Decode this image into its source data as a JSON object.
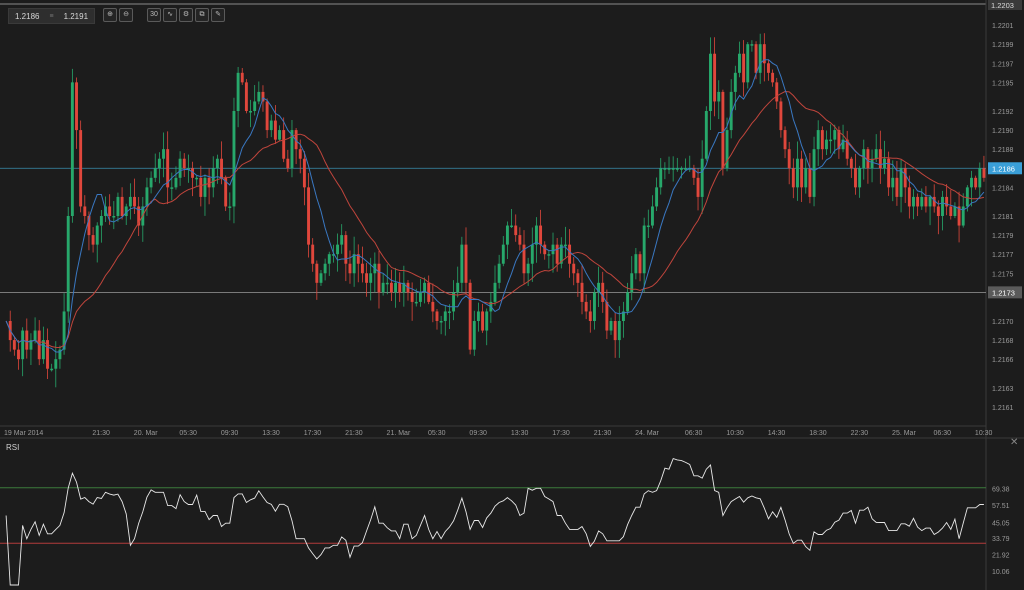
{
  "toolbar": {
    "bid": "1.2186",
    "ask": "1.2191",
    "separator": "≡",
    "tools": [
      {
        "name": "zoom-in-icon",
        "glyph": "⊕"
      },
      {
        "name": "zoom-out-icon",
        "glyph": "⊖"
      },
      {
        "name": "timeframe-30m-button",
        "glyph": "30"
      },
      {
        "name": "indicators-icon",
        "glyph": "∿"
      },
      {
        "name": "settings-icon",
        "glyph": "⚙"
      },
      {
        "name": "copy-icon",
        "glyph": "⧉"
      },
      {
        "name": "draw-icon",
        "glyph": "✎"
      }
    ]
  },
  "colors": {
    "background": "#1c1c1c",
    "up": "#27a86b",
    "down": "#e0473c",
    "ma_fast": "#3a78c2",
    "ma_slow": "#c0453c",
    "hline_blue": "#3a8fb0",
    "hline_grey": "#9a9a9a",
    "rsi_line": "#e8e8e8",
    "rsi_upper": "#3b7a3b",
    "rsi_lower": "#b23b3b",
    "current_tag": "#3a9fd8",
    "grid": "#2a2a2a"
  },
  "rsi_panel": {
    "label": "RSI",
    "close_glyph": "✕"
  },
  "chart_data": [
    {
      "type": "candlestick",
      "instrument_price_labels": {
        "current": "1.2186",
        "marker": "1.2173",
        "top": "1.2203"
      },
      "ylim": [
        1.2159,
        1.2203
      ],
      "y_ticks": [
        "1.2201",
        "1.2199",
        "1.2197",
        "1.2195",
        "1.2192",
        "1.2190",
        "1.2188",
        "1.2186",
        "1.2184",
        "1.2181",
        "1.2179",
        "1.2177",
        "1.2175",
        "1.2173",
        "1.2170",
        "1.2168",
        "1.2166",
        "1.2163",
        "1.2161"
      ],
      "y_tick_values": [
        1.2201,
        1.2199,
        1.2197,
        1.2195,
        1.2192,
        1.219,
        1.2188,
        1.2186,
        1.2184,
        1.2181,
        1.2179,
        1.2177,
        1.2175,
        1.2173,
        1.217,
        1.2168,
        1.2166,
        1.2163,
        1.2161
      ],
      "x_ticks": [
        "19 Mar 2014",
        "21:30",
        "20. Mar",
        "05:30",
        "09:30",
        "13:30",
        "17:30",
        "21:30",
        "21. Mar",
        "05:30",
        "09:30",
        "13:30",
        "17:30",
        "21:30",
        "24. Mar",
        "06:30",
        "10:30",
        "14:30",
        "18:30",
        "22:30",
        "25. Mar",
        "06:30",
        "10:30"
      ],
      "x_tick_index": [
        0,
        23,
        33,
        44,
        54,
        64,
        74,
        84,
        94,
        104,
        114,
        124,
        134,
        144,
        154,
        166,
        176,
        186,
        196,
        206,
        216,
        226,
        236
      ],
      "horizontal_lines": [
        {
          "value": 1.2186,
          "label": "1.2186"
        },
        {
          "value": 1.2173,
          "label": "1.2173"
        }
      ],
      "closes": [
        1.217,
        1.2168,
        1.2167,
        1.2166,
        1.2169,
        1.2167,
        1.2168,
        1.2169,
        1.2166,
        1.2168,
        1.2165,
        1.2165,
        1.2166,
        1.2167,
        1.2171,
        1.2181,
        1.2195,
        1.219,
        1.2182,
        1.2181,
        1.2179,
        1.2178,
        1.218,
        1.2181,
        1.2182,
        1.2181,
        1.2181,
        1.2183,
        1.2181,
        1.2182,
        1.2183,
        1.2182,
        1.218,
        1.2182,
        1.2184,
        1.2185,
        1.2186,
        1.2187,
        1.2188,
        1.2184,
        1.2184,
        1.2185,
        1.2187,
        1.2186,
        1.2186,
        1.2185,
        1.2185,
        1.2183,
        1.2185,
        1.2184,
        1.2186,
        1.2187,
        1.2185,
        1.2182,
        1.2182,
        1.2192,
        1.2196,
        1.2195,
        1.2192,
        1.2192,
        1.2193,
        1.2194,
        1.2193,
        1.219,
        1.2191,
        1.2189,
        1.219,
        1.2187,
        1.2186,
        1.219,
        1.2188,
        1.2187,
        1.2184,
        1.2178,
        1.2176,
        1.2174,
        1.2175,
        1.2176,
        1.2177,
        1.2177,
        1.2178,
        1.2179,
        1.2176,
        1.2175,
        1.2177,
        1.2176,
        1.2175,
        1.2174,
        1.2175,
        1.2176,
        1.2173,
        1.2174,
        1.2174,
        1.2173,
        1.2174,
        1.2173,
        1.2174,
        1.2173,
        1.2172,
        1.2172,
        1.2173,
        1.2174,
        1.2172,
        1.2171,
        1.217,
        1.217,
        1.2171,
        1.2171,
        1.2173,
        1.2174,
        1.2178,
        1.2174,
        1.2167,
        1.217,
        1.2171,
        1.2169,
        1.2171,
        1.2172,
        1.2174,
        1.2176,
        1.2178,
        1.218,
        1.218,
        1.2179,
        1.2178,
        1.2175,
        1.2176,
        1.2178,
        1.218,
        1.2178,
        1.2177,
        1.2177,
        1.2178,
        1.2176,
        1.2178,
        1.2178,
        1.2176,
        1.2175,
        1.2174,
        1.2172,
        1.2171,
        1.217,
        1.2173,
        1.2174,
        1.2172,
        1.2169,
        1.217,
        1.2168,
        1.217,
        1.2171,
        1.2173,
        1.2175,
        1.2177,
        1.2175,
        1.218,
        1.218,
        1.2182,
        1.2184,
        1.2186,
        1.2186,
        1.2186,
        1.2186,
        1.2186,
        1.2186,
        1.2186,
        1.2186,
        1.2185,
        1.2183,
        1.2187,
        1.2192,
        1.2198,
        1.2193,
        1.2194,
        1.2186,
        1.219,
        1.2194,
        1.2196,
        1.2198,
        1.2195,
        1.2199,
        1.2199,
        1.2196,
        1.2199,
        1.2197,
        1.2196,
        1.2195,
        1.2193,
        1.219,
        1.2188,
        1.2186,
        1.2184,
        1.2187,
        1.2184,
        1.2186,
        1.2183,
        1.2188,
        1.219,
        1.2188,
        1.2189,
        1.2189,
        1.219,
        1.2188,
        1.2189,
        1.2187,
        1.2186,
        1.2184,
        1.2186,
        1.2188,
        1.2186,
        1.2187,
        1.2188,
        1.2186,
        1.2187,
        1.2184,
        1.2185,
        1.2183,
        1.2186,
        1.2184,
        1.2182,
        1.2183,
        1.2182,
        1.2183,
        1.2182,
        1.2183,
        1.2182,
        1.2181,
        1.2183,
        1.2182,
        1.2181,
        1.2182,
        1.218,
        1.2182,
        1.2184,
        1.2185,
        1.2184,
        1.2186,
        1.2185
      ],
      "ma_fast_period": 8,
      "ma_slow_period": 21
    },
    {
      "type": "line",
      "name": "RSI",
      "ylim": [
        0,
        100
      ],
      "y_ticks": [
        "69.38",
        "57.51",
        "45.05",
        "33.79",
        "21.92",
        "10.06"
      ],
      "y_tick_values": [
        69.38,
        57.51,
        45.05,
        33.79,
        21.92,
        10.06
      ],
      "levels": [
        70,
        30
      ]
    }
  ]
}
